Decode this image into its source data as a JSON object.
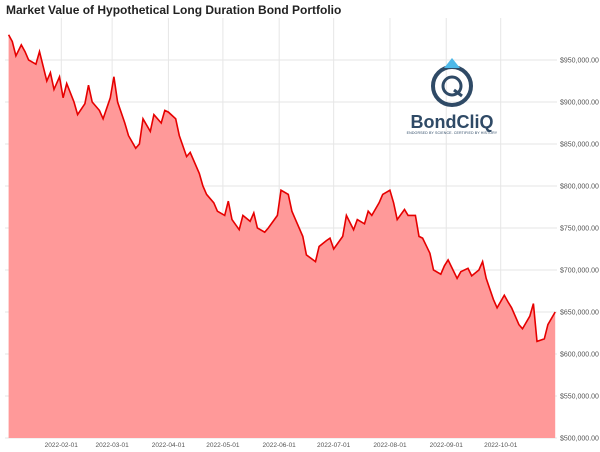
{
  "chart_data": {
    "type": "area",
    "title": "Market Value of Hypothetical Long Duration Bond Portfolio",
    "xlabel": "",
    "ylabel": "",
    "ylim": [
      500000,
      1000000
    ],
    "y_ticks": [
      "$500,000.00",
      "$550,000.00",
      "$600,000.00",
      "$650,000.00",
      "$700,000.00",
      "$750,000.00",
      "$800,000.00",
      "$850,000.00",
      "$900,000.00",
      "$950,000.00"
    ],
    "y_tick_values": [
      500000,
      550000,
      600000,
      650000,
      700000,
      750000,
      800000,
      850000,
      900000,
      950000
    ],
    "x_ticks": [
      "2022-02-01",
      "2022-03-01",
      "2022-04-01",
      "2022-05-01",
      "2022-06-01",
      "2022-07-01",
      "2022-08-01",
      "2022-09-01",
      "2022-10-01"
    ],
    "grid": true,
    "fill_color": "#ff9999",
    "line_color": "#e60000",
    "series": [
      {
        "x": [
          "2022-01-03",
          "2022-01-05",
          "2022-01-07",
          "2022-01-10",
          "2022-01-12",
          "2022-01-14",
          "2022-01-18",
          "2022-01-20",
          "2022-01-24",
          "2022-01-26",
          "2022-01-28",
          "2022-01-31",
          "2022-02-02",
          "2022-02-04",
          "2022-02-08",
          "2022-02-10",
          "2022-02-14",
          "2022-02-16",
          "2022-02-18",
          "2022-02-22",
          "2022-02-24",
          "2022-02-28",
          "2022-03-02",
          "2022-03-04",
          "2022-03-08",
          "2022-03-10",
          "2022-03-14",
          "2022-03-16",
          "2022-03-18",
          "2022-03-22",
          "2022-03-24",
          "2022-03-28",
          "2022-03-30",
          "2022-04-01",
          "2022-04-05",
          "2022-04-07",
          "2022-04-11",
          "2022-04-13",
          "2022-04-18",
          "2022-04-20",
          "2022-04-22",
          "2022-04-26",
          "2022-04-28",
          "2022-05-02",
          "2022-05-04",
          "2022-05-06",
          "2022-05-10",
          "2022-05-12",
          "2022-05-16",
          "2022-05-18",
          "2022-05-20",
          "2022-05-24",
          "2022-05-26",
          "2022-05-31",
          "2022-06-02",
          "2022-06-06",
          "2022-06-08",
          "2022-06-10",
          "2022-06-14",
          "2022-06-16",
          "2022-06-21",
          "2022-06-23",
          "2022-06-27",
          "2022-06-29",
          "2022-07-01",
          "2022-07-06",
          "2022-07-08",
          "2022-07-12",
          "2022-07-14",
          "2022-07-18",
          "2022-07-20",
          "2022-07-22",
          "2022-07-26",
          "2022-07-28",
          "2022-08-01",
          "2022-08-03",
          "2022-08-05",
          "2022-08-09",
          "2022-08-11",
          "2022-08-15",
          "2022-08-17",
          "2022-08-19",
          "2022-08-23",
          "2022-08-25",
          "2022-08-29",
          "2022-08-31",
          "2022-09-02",
          "2022-09-07",
          "2022-09-09",
          "2022-09-13",
          "2022-09-15",
          "2022-09-19",
          "2022-09-21",
          "2022-09-23",
          "2022-09-27",
          "2022-09-29",
          "2022-10-03",
          "2022-10-05",
          "2022-10-07",
          "2022-10-11",
          "2022-10-13",
          "2022-10-17",
          "2022-10-19",
          "2022-10-21",
          "2022-10-25",
          "2022-10-27",
          "2022-10-31"
        ],
        "values": [
          980000,
          972000,
          955000,
          968000,
          960000,
          950000,
          945000,
          960000,
          925000,
          935000,
          915000,
          930000,
          905000,
          922000,
          900000,
          885000,
          898000,
          920000,
          900000,
          890000,
          880000,
          905000,
          930000,
          900000,
          875000,
          860000,
          845000,
          850000,
          880000,
          865000,
          885000,
          875000,
          890000,
          888000,
          880000,
          860000,
          835000,
          840000,
          815000,
          800000,
          790000,
          780000,
          770000,
          765000,
          782000,
          760000,
          748000,
          765000,
          758000,
          768000,
          750000,
          745000,
          750000,
          765000,
          795000,
          790000,
          770000,
          760000,
          740000,
          718000,
          710000,
          728000,
          735000,
          738000,
          725000,
          740000,
          765000,
          748000,
          760000,
          755000,
          770000,
          765000,
          780000,
          790000,
          795000,
          780000,
          760000,
          772000,
          765000,
          765000,
          740000,
          738000,
          720000,
          700000,
          695000,
          705000,
          712000,
          690000,
          698000,
          702000,
          693000,
          700000,
          710000,
          690000,
          665000,
          655000,
          670000,
          662000,
          655000,
          635000,
          630000,
          645000,
          660000,
          615000,
          618000,
          635000,
          650000
        ]
      }
    ]
  },
  "logo": {
    "name": "BondCliQ",
    "tagline": "ENDORSED BY SCIENCE. CERTIFIED BY HISTORY"
  }
}
